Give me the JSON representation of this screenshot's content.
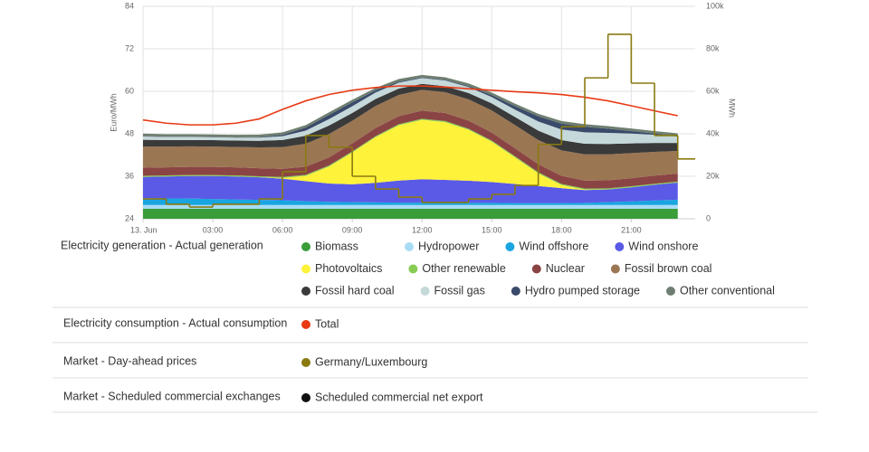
{
  "chart_data": {
    "type": "stacked-area",
    "x": [
      0,
      1,
      2,
      3,
      4,
      5,
      6,
      7,
      8,
      9,
      10,
      11,
      12,
      13,
      14,
      15,
      16,
      17,
      18,
      19,
      20,
      21,
      22,
      23
    ],
    "xlim": [
      0,
      23.75
    ],
    "xticks": [
      {
        "value": 0,
        "label": "13. Jun"
      },
      {
        "value": 3,
        "label": "03:00"
      },
      {
        "value": 6,
        "label": "06:00"
      },
      {
        "value": 9,
        "label": "09:00"
      },
      {
        "value": 12,
        "label": "12:00"
      },
      {
        "value": 15,
        "label": "15:00"
      },
      {
        "value": 18,
        "label": "18:00"
      },
      {
        "value": 21,
        "label": "21:00"
      }
    ],
    "y_label": "Euro/MWh",
    "ylim": [
      24,
      84
    ],
    "yticks": [
      24,
      36,
      48,
      60,
      72,
      84
    ],
    "y2_label": "MWh",
    "y2lim": [
      0,
      100000
    ],
    "y2ticks": [
      {
        "value": 0,
        "label": "0"
      },
      {
        "value": 20000,
        "label": "20k"
      },
      {
        "value": 40000,
        "label": "40k"
      },
      {
        "value": 60000,
        "label": "60k"
      },
      {
        "value": 80000,
        "label": "80k"
      },
      {
        "value": 100000,
        "label": "100k"
      }
    ],
    "grid": true,
    "groups": [
      {
        "title": "Electricity generation - Actual generation",
        "series": [
          {
            "name": "Biomass",
            "color": "#3a9d3a",
            "axis": "y2",
            "values": [
              4700,
              4700,
              4700,
              4700,
              4700,
              4700,
              4700,
              4700,
              4700,
              4700,
              4700,
              4700,
              4700,
              4700,
              4700,
              4700,
              4700,
              4700,
              4700,
              4700,
              4700,
              4700,
              4700,
              4700
            ]
          },
          {
            "name": "Hydropower",
            "color": "#a8dcf5",
            "axis": "y2",
            "values": [
              1800,
              1800,
              1800,
              1800,
              1800,
              1800,
              1800,
              1800,
              1800,
              1800,
              1800,
              1800,
              1800,
              1800,
              1800,
              1800,
              1800,
              1800,
              1800,
              1800,
              1800,
              1800,
              1800,
              1800
            ]
          },
          {
            "name": "Wind offshore",
            "color": "#19a5e0",
            "axis": "y2",
            "values": [
              3200,
              3100,
              3000,
              2800,
              2600,
              2400,
              2200,
              1800,
              1500,
              1300,
              1200,
              1100,
              1100,
              1000,
              1000,
              1000,
              900,
              900,
              900,
              1000,
              1300,
              1700,
              2100,
              2500
            ]
          },
          {
            "name": "Wind onshore",
            "color": "#5a5ae6",
            "axis": "y2",
            "values": [
              10000,
              10300,
              10600,
              10800,
              10800,
              10600,
              10200,
              9400,
              8600,
              8400,
              9200,
              10400,
              11000,
              10800,
              10400,
              9800,
              9000,
              8000,
              7000,
              6000,
              6000,
              6600,
              7400,
              8000
            ]
          },
          {
            "name": "Photovoltaics",
            "color": "#fff23a",
            "axis": "y2",
            "values": [
              0,
              0,
              0,
              0,
              0,
              0,
              300,
              2500,
              8000,
              15000,
              21500,
              26000,
              28000,
              27200,
              24000,
              19000,
              12500,
              6000,
              1500,
              200,
              0,
              0,
              0,
              0
            ]
          },
          {
            "name": "Other renewable",
            "color": "#88cc55",
            "axis": "y2",
            "values": [
              500,
              500,
              500,
              500,
              500,
              500,
              500,
              500,
              500,
              500,
              500,
              500,
              500,
              500,
              500,
              500,
              500,
              500,
              500,
              500,
              500,
              500,
              500,
              500
            ]
          },
          {
            "name": "Nuclear",
            "color": "#8b4444",
            "axis": "y2",
            "values": [
              3800,
              3800,
              3800,
              3800,
              3800,
              3800,
              3800,
              3800,
              3800,
              3800,
              3800,
              3800,
              3800,
              3800,
              3800,
              3800,
              3800,
              3800,
              3800,
              3800,
              3800,
              3800,
              3800,
              3800
            ]
          },
          {
            "name": "Fossil brown coal",
            "color": "#9b7653",
            "axis": "y2",
            "values": [
              10000,
              9800,
              9700,
              9600,
              9600,
              9800,
              10200,
              10800,
              11000,
              10600,
              10400,
              10000,
              9800,
              9800,
              10000,
              10400,
              10900,
              11400,
              12000,
              12300,
              12200,
              11800,
              11200,
              10600
            ]
          },
          {
            "name": "Fossil hard coal",
            "color": "#3a3a3a",
            "axis": "y2",
            "values": [
              3200,
              3100,
              3000,
              3000,
              3000,
              3100,
              3400,
              3800,
              4000,
              3700,
              3300,
              3000,
              2800,
              2800,
              3000,
              3300,
              3800,
              4400,
              4800,
              5000,
              4900,
              4600,
              4200,
              3800
            ]
          },
          {
            "name": "Fossil gas",
            "color": "#c5d8da",
            "axis": "y2",
            "values": [
              1500,
              1400,
              1400,
              1400,
              1400,
              1500,
              1800,
              2400,
              3000,
              3200,
              3000,
              2800,
              2700,
              2700,
              2800,
              3000,
              3500,
              4300,
              5000,
              5400,
              5200,
              4600,
              3800,
              3000
            ]
          },
          {
            "name": "Hydro pumped storage",
            "color": "#3a4a6a",
            "axis": "y2",
            "values": [
              200,
              100,
              100,
              100,
              100,
              200,
              600,
              1400,
              2000,
              1800,
              1000,
              500,
              300,
              300,
              500,
              900,
              1600,
              2400,
              2800,
              2600,
              2000,
              1200,
              600,
              300
            ]
          },
          {
            "name": "Other conventional",
            "color": "#6e7e70",
            "axis": "y2",
            "values": [
              1200,
              1200,
              1200,
              1200,
              1200,
              1200,
              1200,
              1200,
              1200,
              1200,
              1200,
              1200,
              1200,
              1200,
              1200,
              1200,
              1200,
              1200,
              1200,
              1200,
              1200,
              1200,
              1200,
              1200
            ]
          }
        ]
      },
      {
        "title": "Electricity consumption - Actual consumption",
        "series": [
          {
            "name": "Total",
            "color": "#e83a14",
            "axis": "y2",
            "values": [
              46500,
              45000,
              44200,
              44200,
              45000,
              47000,
              51500,
              55500,
              58500,
              60500,
              61800,
              62500,
              62500,
              62000,
              61200,
              60500,
              59800,
              59300,
              58500,
              57200,
              55500,
              53200,
              50800,
              48500
            ]
          }
        ]
      },
      {
        "title": "Market - Day-ahead prices",
        "series": [
          {
            "name": "Germany/Luxembourg",
            "color": "#8a7a10",
            "axis": "y",
            "values": [
              29.6,
              28.1,
              27.3,
              28.1,
              28.1,
              29.6,
              37.3,
              47.5,
              44.2,
              36.0,
              32.4,
              30.1,
              28.6,
              28.6,
              29.6,
              30.9,
              33.4,
              45.0,
              50.0,
              63.8,
              76.1,
              62.3,
              47.5,
              40.9
            ]
          }
        ]
      },
      {
        "title": "Market - Scheduled commercial exchanges",
        "series": [
          {
            "name": "Scheduled commercial net export",
            "color": "#111111"
          }
        ]
      }
    ]
  }
}
